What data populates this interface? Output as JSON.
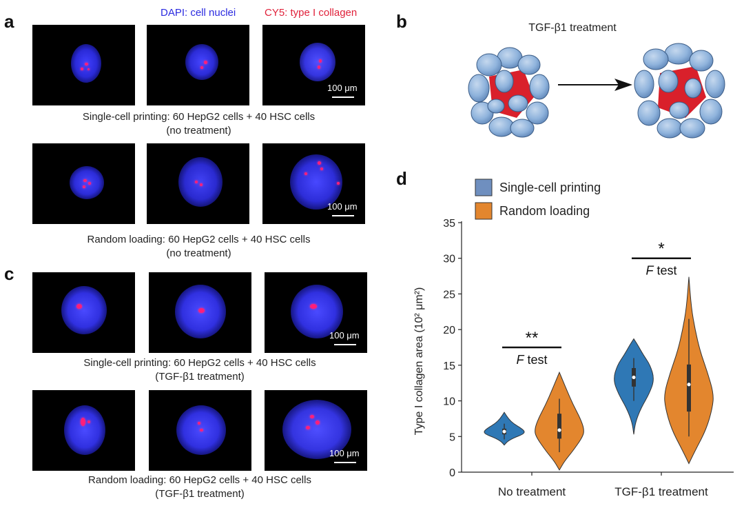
{
  "panels": {
    "a": "a",
    "b": "b",
    "c": "c",
    "d": "d"
  },
  "legend": {
    "dapi": "DAPI: cell nuclei",
    "cy5": "CY5: type I collagen",
    "dapi_color": "#2a2ae0",
    "cy5_color": "#e0213a"
  },
  "scalebar": "100 μm",
  "captions": {
    "a1_line1": "Single-cell printing: 60 HepG2 cells + 40 HSC cells",
    "a1_line2": "(no treatment)",
    "a2_line1": "Random loading: 60 HepG2 cells + 40 HSC cells",
    "a2_line2": "(no treatment)",
    "c1_line1": "Single-cell printing: 60 HepG2 cells + 40 HSC cells",
    "c1_line2": "(TGF-β1 treatment)",
    "c2_line1": "Random loading: 60 HepG2 cells + 40 HSC cells",
    "c2_line2": "(TGF-β1 treatment)"
  },
  "diagram": {
    "title": "TGF-β1 treatment",
    "cell_color": "#8fb3dc",
    "core_color": "#d9202b"
  },
  "chart_data": {
    "type": "violin",
    "categories": [
      "No treatment",
      "TGF-β1 treatment"
    ],
    "ylabel": "Type I collagen area (10² μm²)",
    "ylim": [
      0,
      35
    ],
    "yticks": [
      0,
      5,
      10,
      15,
      20,
      25,
      30,
      35
    ],
    "legend_position": "top-left",
    "series": [
      {
        "name": "Single-cell printing",
        "color": "#2f78b5",
        "violins": [
          {
            "category": "No treatment",
            "min": 3.8,
            "max": 8.4,
            "q1": 5.3,
            "median": 5.7,
            "q3": 6.1,
            "whisker_low": 4.6,
            "whisker_high": 6.8,
            "profile": [
              [
                3.8,
                0.0
              ],
              [
                4.3,
                0.15
              ],
              [
                4.8,
                0.45
              ],
              [
                5.3,
                0.9
              ],
              [
                5.7,
                1.0
              ],
              [
                6.2,
                0.8
              ],
              [
                6.8,
                0.45
              ],
              [
                7.5,
                0.2
              ],
              [
                8.4,
                0.0
              ]
            ]
          },
          {
            "category": "TGF-β1 treatment",
            "min": 5.3,
            "max": 18.7,
            "q1": 12.0,
            "median": 13.3,
            "q3": 14.6,
            "whisker_low": 10.0,
            "whisker_high": 16.0,
            "profile": [
              [
                5.3,
                0.0
              ],
              [
                7.0,
                0.08
              ],
              [
                9.0,
                0.35
              ],
              [
                11.0,
                0.75
              ],
              [
                13.0,
                1.0
              ],
              [
                15.0,
                0.8
              ],
              [
                16.5,
                0.45
              ],
              [
                17.8,
                0.2
              ],
              [
                18.7,
                0.0
              ]
            ]
          }
        ]
      },
      {
        "name": "Random loading",
        "color": "#e3862e",
        "violins": [
          {
            "category": "No treatment",
            "min": 0.3,
            "max": 14.0,
            "q1": 4.7,
            "median": 5.9,
            "q3": 8.2,
            "whisker_low": 2.8,
            "whisker_high": 10.3,
            "profile": [
              [
                0.3,
                0.0
              ],
              [
                1.5,
                0.2
              ],
              [
                3.0,
                0.55
              ],
              [
                5.0,
                0.95
              ],
              [
                6.0,
                1.0
              ],
              [
                7.5,
                0.85
              ],
              [
                9.5,
                0.55
              ],
              [
                11.5,
                0.3
              ],
              [
                13.0,
                0.12
              ],
              [
                14.0,
                0.0
              ]
            ]
          },
          {
            "category": "TGF-β1 treatment",
            "min": 1.2,
            "max": 27.4,
            "q1": 8.5,
            "median": 12.3,
            "q3": 15.1,
            "whisker_low": 5.0,
            "whisker_high": 21.5,
            "profile": [
              [
                1.2,
                0.0
              ],
              [
                3.0,
                0.25
              ],
              [
                6.0,
                0.7
              ],
              [
                9.0,
                0.95
              ],
              [
                11.0,
                1.0
              ],
              [
                14.0,
                0.75
              ],
              [
                17.0,
                0.45
              ],
              [
                20.0,
                0.25
              ],
              [
                23.0,
                0.1
              ],
              [
                27.4,
                0.0
              ]
            ]
          }
        ]
      }
    ],
    "annotations": [
      {
        "category": "No treatment",
        "stars": "**",
        "test": "F test",
        "y": 17.5
      },
      {
        "category": "TGF-β1 treatment",
        "stars": "*",
        "test": "F test",
        "y": 30.0
      }
    ]
  }
}
